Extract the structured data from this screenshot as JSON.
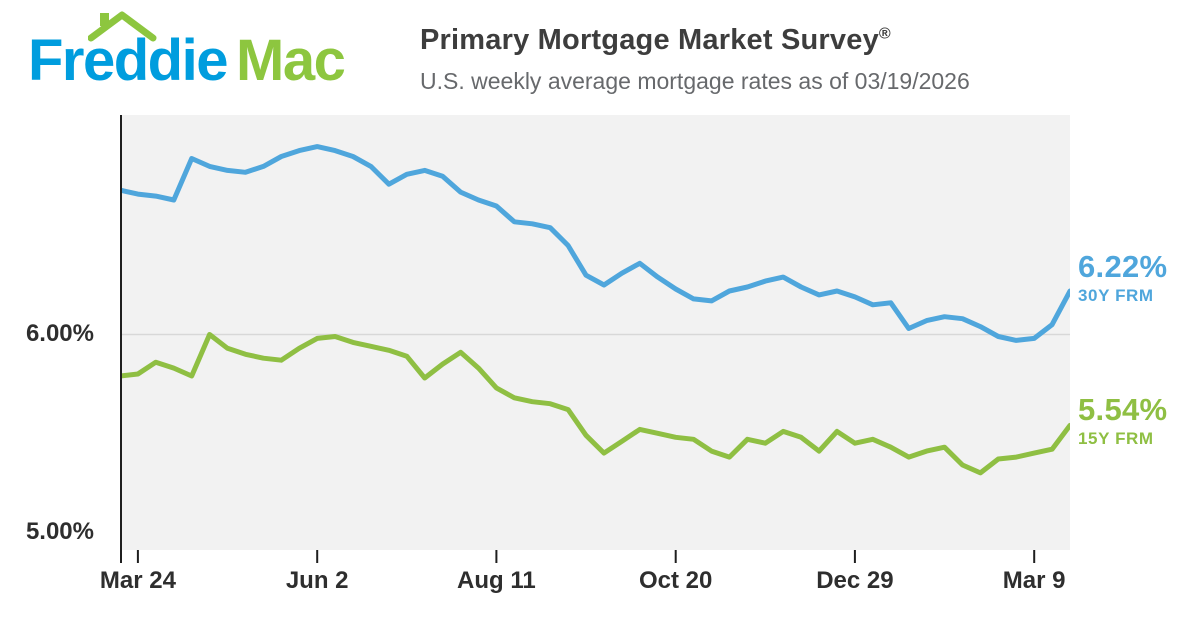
{
  "header": {
    "logo_freddie": "Freddie",
    "logo_mac": "Mac",
    "title": "Primary Mortgage Market Survey",
    "title_mark": "®",
    "subtitle": "U.S. weekly average mortgage rates as of 03/19/2026"
  },
  "chart_data": {
    "type": "line",
    "title": "Primary Mortgage Market Survey",
    "x_unit": "week",
    "x_tick_labels": [
      "Mar 24",
      "Jun 2",
      "Aug 11",
      "Oct 20",
      "Dec 29",
      "Mar 9"
    ],
    "x_tick_indices": [
      1,
      11,
      21,
      31,
      41,
      51
    ],
    "y_ticks": [
      {
        "value": 6.0,
        "label": "6.00%"
      },
      {
        "value": 5.0,
        "label": "5.00%"
      }
    ],
    "ylim": [
      4.91,
      7.11
    ],
    "gridline_values": [
      6.0
    ],
    "grid": "horizontal-only",
    "plot_bg": "#f2f2f2",
    "legend_position": "right-of-line-ends",
    "series": [
      {
        "name": "30Y FRM",
        "end_label": "6.22%",
        "color": "#4fa6dc",
        "values": [
          6.73,
          6.71,
          6.7,
          6.68,
          6.89,
          6.85,
          6.83,
          6.82,
          6.85,
          6.9,
          6.93,
          6.95,
          6.93,
          6.9,
          6.85,
          6.76,
          6.81,
          6.83,
          6.8,
          6.72,
          6.68,
          6.65,
          6.57,
          6.56,
          6.54,
          6.45,
          6.3,
          6.25,
          6.31,
          6.36,
          6.29,
          6.23,
          6.18,
          6.17,
          6.22,
          6.24,
          6.27,
          6.29,
          6.24,
          6.2,
          6.22,
          6.19,
          6.15,
          6.16,
          6.03,
          6.07,
          6.09,
          6.08,
          6.04,
          5.99,
          5.97,
          5.98,
          6.05,
          6.22
        ]
      },
      {
        "name": "15Y FRM",
        "end_label": "5.54%",
        "color": "#8fbf43",
        "values": [
          5.79,
          5.8,
          5.86,
          5.83,
          5.79,
          6.0,
          5.93,
          5.9,
          5.88,
          5.87,
          5.93,
          5.98,
          5.99,
          5.96,
          5.94,
          5.92,
          5.89,
          5.78,
          5.85,
          5.91,
          5.83,
          5.73,
          5.68,
          5.66,
          5.65,
          5.62,
          5.49,
          5.4,
          5.46,
          5.52,
          5.5,
          5.48,
          5.47,
          5.41,
          5.38,
          5.47,
          5.45,
          5.51,
          5.48,
          5.41,
          5.51,
          5.45,
          5.47,
          5.43,
          5.38,
          5.41,
          5.43,
          5.34,
          5.3,
          5.37,
          5.38,
          5.4,
          5.42,
          5.54
        ]
      }
    ]
  },
  "colors": {
    "logo_blue": "#009dde",
    "logo_green": "#8dc63f",
    "line_blue": "#4fa6dc",
    "line_green": "#8fbf43",
    "title_text": "#3d3d3d",
    "subtitle_text": "#67696c",
    "axis_text": "#2e2e2e",
    "plot_background": "#f2f2f2"
  }
}
